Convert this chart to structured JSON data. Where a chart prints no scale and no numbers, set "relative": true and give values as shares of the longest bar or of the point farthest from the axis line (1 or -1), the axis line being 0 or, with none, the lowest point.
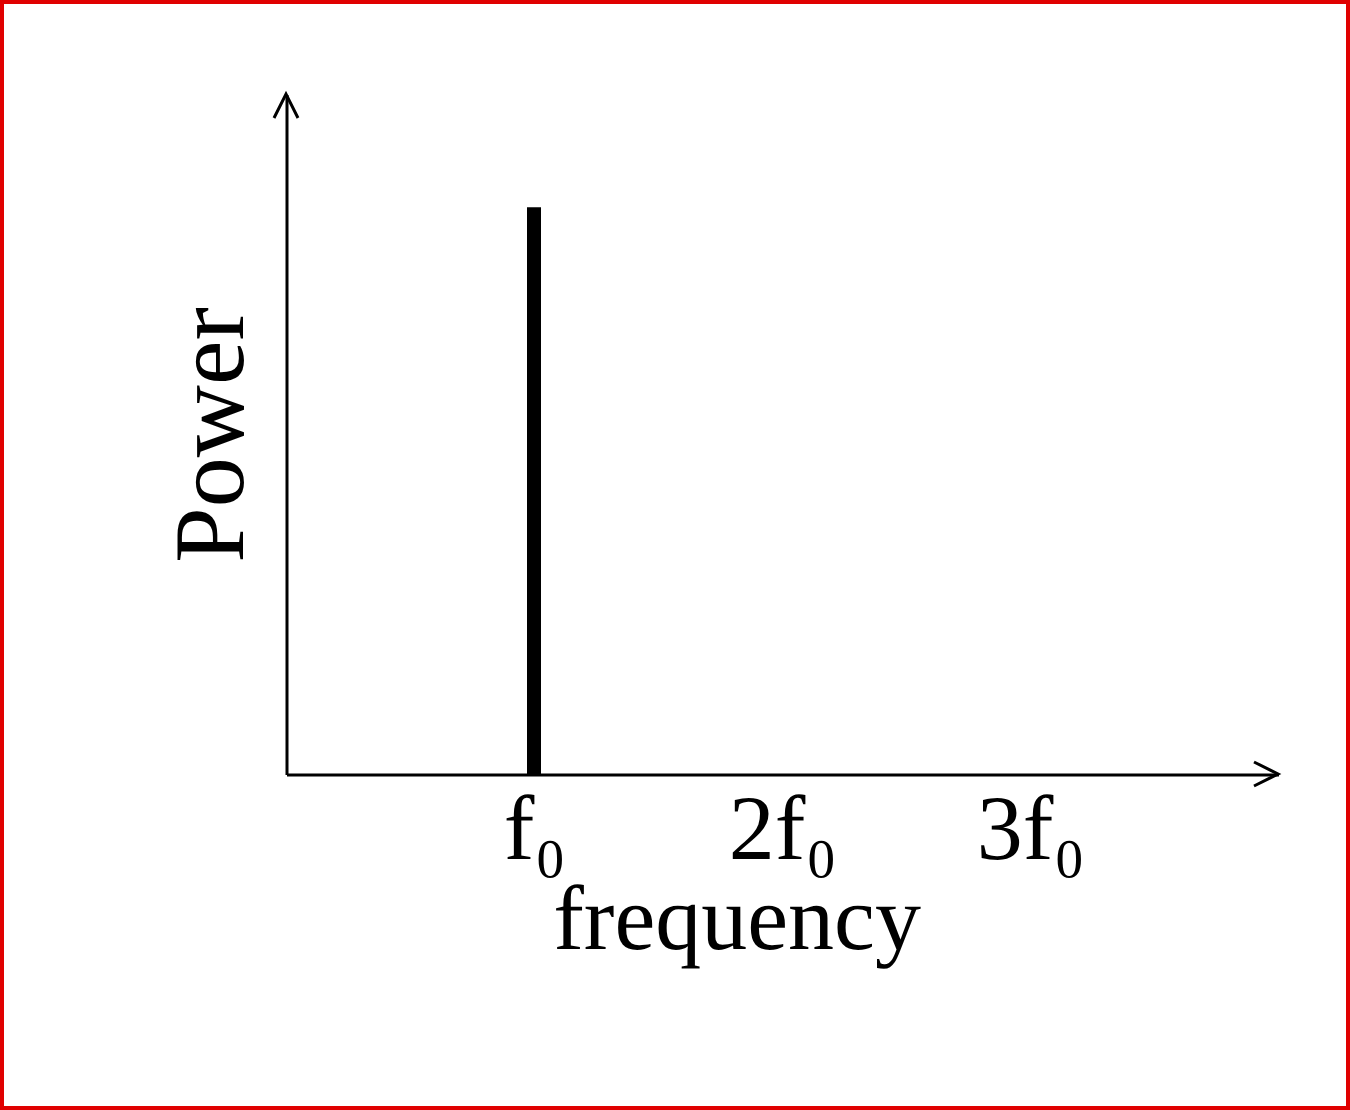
{
  "chart_data": {
    "type": "bar",
    "relative": true,
    "xlabel": "frequency",
    "ylabel": "Power",
    "categories": [
      "f₀",
      "2f₀",
      "3f₀"
    ],
    "values": [
      1,
      0,
      0
    ],
    "color": "#000000",
    "grid": false,
    "tick_labels": "x"
  }
}
